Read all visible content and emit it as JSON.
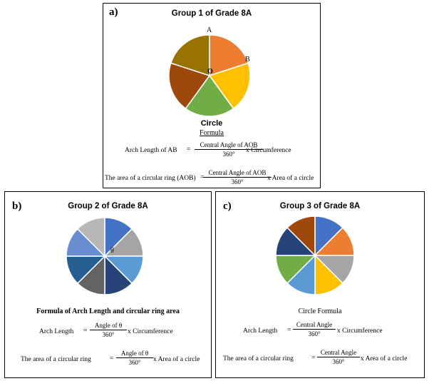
{
  "panel_a": {
    "label": "a)",
    "title": "Group 1 of Grade 8A",
    "point_a": "A",
    "point_b": "B",
    "point_o": "O",
    "circle_label": "Circle",
    "formula_heading": "Formula",
    "arc_lhs": "Arch Length of AB",
    "arc_num": "Central Angle of AOB",
    "arc_den": "360°",
    "arc_rhs": "x Circumference",
    "area_lhs": "The area of a circular ring (AOB)",
    "area_num": "Central Angle of AOB",
    "area_den": "360°",
    "area_rhs": "x Area of a circle",
    "equals": "=",
    "colors": [
      "#ED7D31",
      "#FFC000",
      "#70AD47",
      "#9E480E",
      "#997300"
    ]
  },
  "panel_b": {
    "label": "b)",
    "title": "Group 2 of Grade 8A",
    "theta": "θ",
    "formula_heading": "Formula of Arch Length and circular ring area",
    "arc_lhs": "Arch Length",
    "arc_num": "Angle of θ",
    "arc_den": "360°",
    "arc_rhs": "x Circumference",
    "area_lhs": "The area of a circular ring",
    "area_num": "Angle of θ",
    "area_den": "360°",
    "area_rhs": "x Area of a circle",
    "equals": "=",
    "colors": [
      "#4472C4",
      "#A5A5A5",
      "#5B9BD5",
      "#264478",
      "#636363",
      "#255E91",
      "#698ED0",
      "#B7B7B7"
    ]
  },
  "panel_c": {
    "label": "c)",
    "title": "Group 3 of Grade 8A",
    "formula_heading": "Circle Formula",
    "arc_lhs": "Arch Length",
    "arc_num": "Central Angle",
    "arc_den": "360°",
    "arc_rhs": "x Circumference",
    "area_lhs": "The area of a circular ring",
    "area_num": "Central Angle",
    "area_den": "360°",
    "area_rhs": "x Area of a circle",
    "equals": "=",
    "colors": [
      "#4472C4",
      "#ED7D31",
      "#A5A5A5",
      "#FFC000",
      "#5B9BD5",
      "#70AD47",
      "#264478",
      "#9E480E"
    ]
  }
}
